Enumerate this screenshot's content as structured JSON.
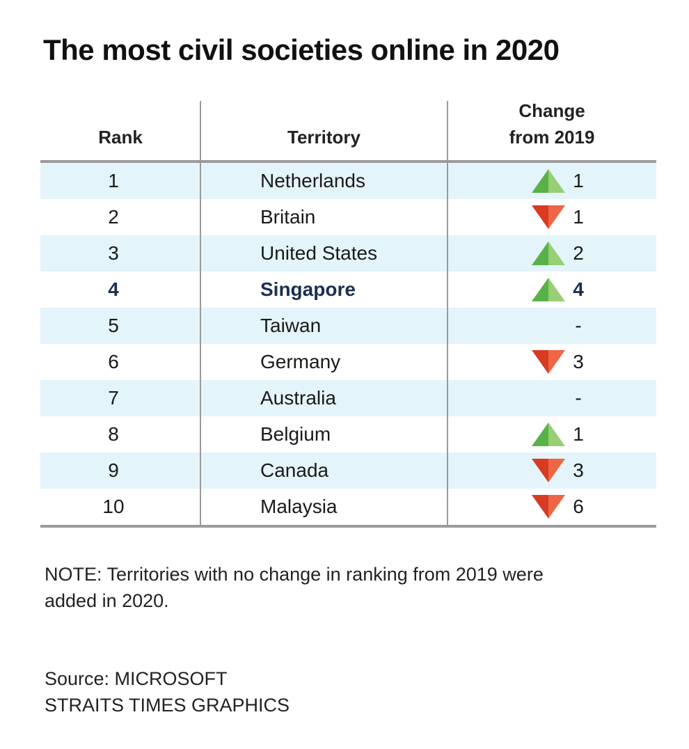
{
  "title": "The most civil societies online in 2020",
  "colors": {
    "up": "#58b247",
    "up_light": "#96cf74",
    "down": "#d93a22",
    "down_light": "#ee6644",
    "row_shade": "#e4f4fb",
    "highlight": "#1b2f52"
  },
  "chart_data": {
    "type": "table",
    "columns": [
      "Rank",
      "Territory",
      "Change from 2019"
    ],
    "column_lines": {
      "change": [
        "Change",
        "from 2019"
      ]
    },
    "highlight_row": "Singapore",
    "rows": [
      {
        "rank": "1",
        "territory": "Netherlands",
        "direction": "up",
        "change": "1"
      },
      {
        "rank": "2",
        "territory": "Britain",
        "direction": "down",
        "change": "1"
      },
      {
        "rank": "3",
        "territory": "United States",
        "direction": "up",
        "change": "2"
      },
      {
        "rank": "4",
        "territory": "Singapore",
        "direction": "up",
        "change": "4"
      },
      {
        "rank": "5",
        "territory": "Taiwan",
        "direction": "none",
        "change": "-"
      },
      {
        "rank": "6",
        "territory": "Germany",
        "direction": "down",
        "change": "3"
      },
      {
        "rank": "7",
        "territory": "Australia",
        "direction": "none",
        "change": "-"
      },
      {
        "rank": "8",
        "territory": "Belgium",
        "direction": "up",
        "change": "1"
      },
      {
        "rank": "9",
        "territory": "Canada",
        "direction": "down",
        "change": "3"
      },
      {
        "rank": "10",
        "territory": "Malaysia",
        "direction": "down",
        "change": "6"
      }
    ]
  },
  "note": "NOTE: Territories with no change in ranking from 2019 were added in 2020.",
  "source_line": "Source: MICROSOFT",
  "credit_line": "STRAITS TIMES GRAPHICS"
}
